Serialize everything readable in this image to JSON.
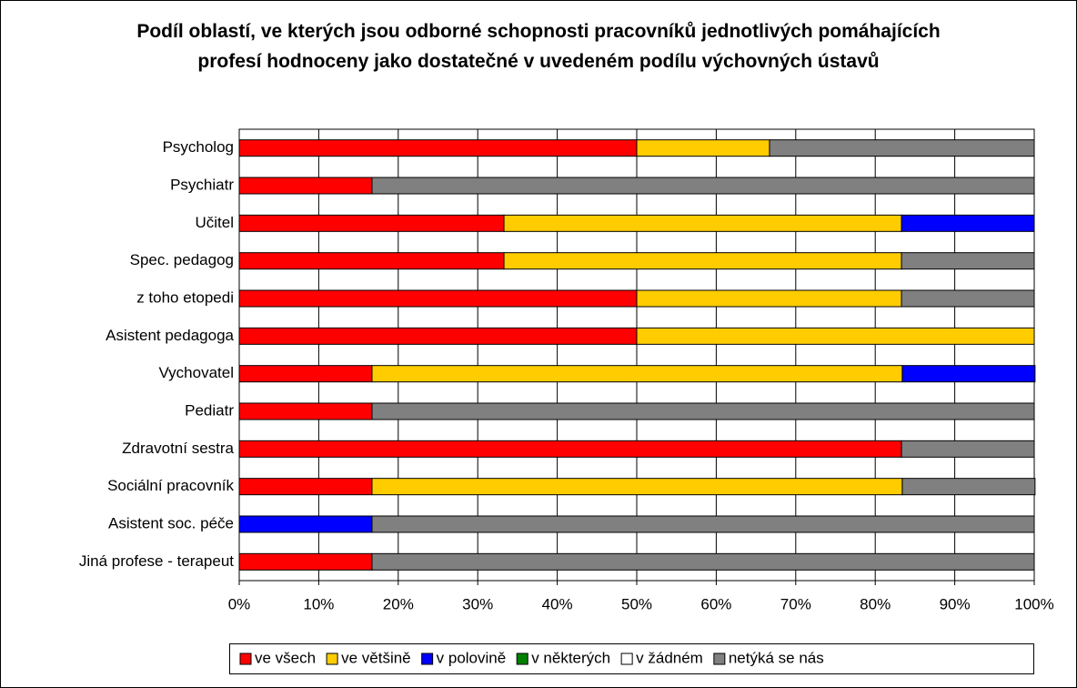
{
  "chart_data": {
    "type": "stacked_barh",
    "title": "Podíl oblastí, ve kterých jsou odborné schopnosti pracovníků jednotlivých pomáhajících profesí hodnoceny jako dostatečné v uvedeném podílu výchovných ústavů",
    "categories": [
      "Psycholog",
      "Psychiatr",
      "Učitel",
      "Spec. pedagog",
      "z toho etopedi",
      "Asistent pedagoga",
      "Vychovatel",
      "Pediatr",
      "Zdravotní sestra",
      "Sociální pracovník",
      "Asistent soc. péče",
      "Jiná profese - terapeut"
    ],
    "series": [
      {
        "name": "ve všech",
        "color": "#ff0000",
        "values": [
          50,
          16.7,
          33.3,
          33.3,
          50,
          50,
          16.7,
          16.7,
          83.3,
          16.7,
          0,
          16.7
        ]
      },
      {
        "name": "ve většině",
        "color": "#ffcc00",
        "values": [
          16.7,
          0,
          50,
          50,
          33.3,
          50,
          66.7,
          0,
          0,
          66.7,
          0,
          0
        ]
      },
      {
        "name": "v polovině",
        "color": "#0000ff",
        "values": [
          0,
          0,
          16.7,
          0,
          0,
          0,
          16.7,
          0,
          0,
          0,
          16.7,
          0
        ]
      },
      {
        "name": "v některých",
        "color": "#008000",
        "values": [
          0,
          0,
          0,
          0,
          0,
          0,
          0,
          0,
          0,
          0,
          0,
          0
        ]
      },
      {
        "name": "v žádném",
        "color": "#ffffff",
        "values": [
          0,
          0,
          0,
          0,
          0,
          0,
          0,
          0,
          0,
          0,
          0,
          0
        ]
      },
      {
        "name": "netýká se nás",
        "color": "#808080",
        "values": [
          33.3,
          83.3,
          0,
          16.7,
          16.7,
          0,
          0,
          83.3,
          16.7,
          16.7,
          83.3,
          83.3
        ]
      }
    ],
    "xlim": [
      0,
      100
    ],
    "xticks": [
      {
        "value": 0,
        "label": "0%"
      },
      {
        "value": 10,
        "label": "10%"
      },
      {
        "value": 20,
        "label": "20%"
      },
      {
        "value": 30,
        "label": "30%"
      },
      {
        "value": 40,
        "label": "40%"
      },
      {
        "value": 50,
        "label": "50%"
      },
      {
        "value": 60,
        "label": "60%"
      },
      {
        "value": 70,
        "label": "70%"
      },
      {
        "value": 80,
        "label": "80%"
      },
      {
        "value": 90,
        "label": "90%"
      },
      {
        "value": 100,
        "label": "100%"
      }
    ],
    "grid": true,
    "legend": "bottom"
  }
}
